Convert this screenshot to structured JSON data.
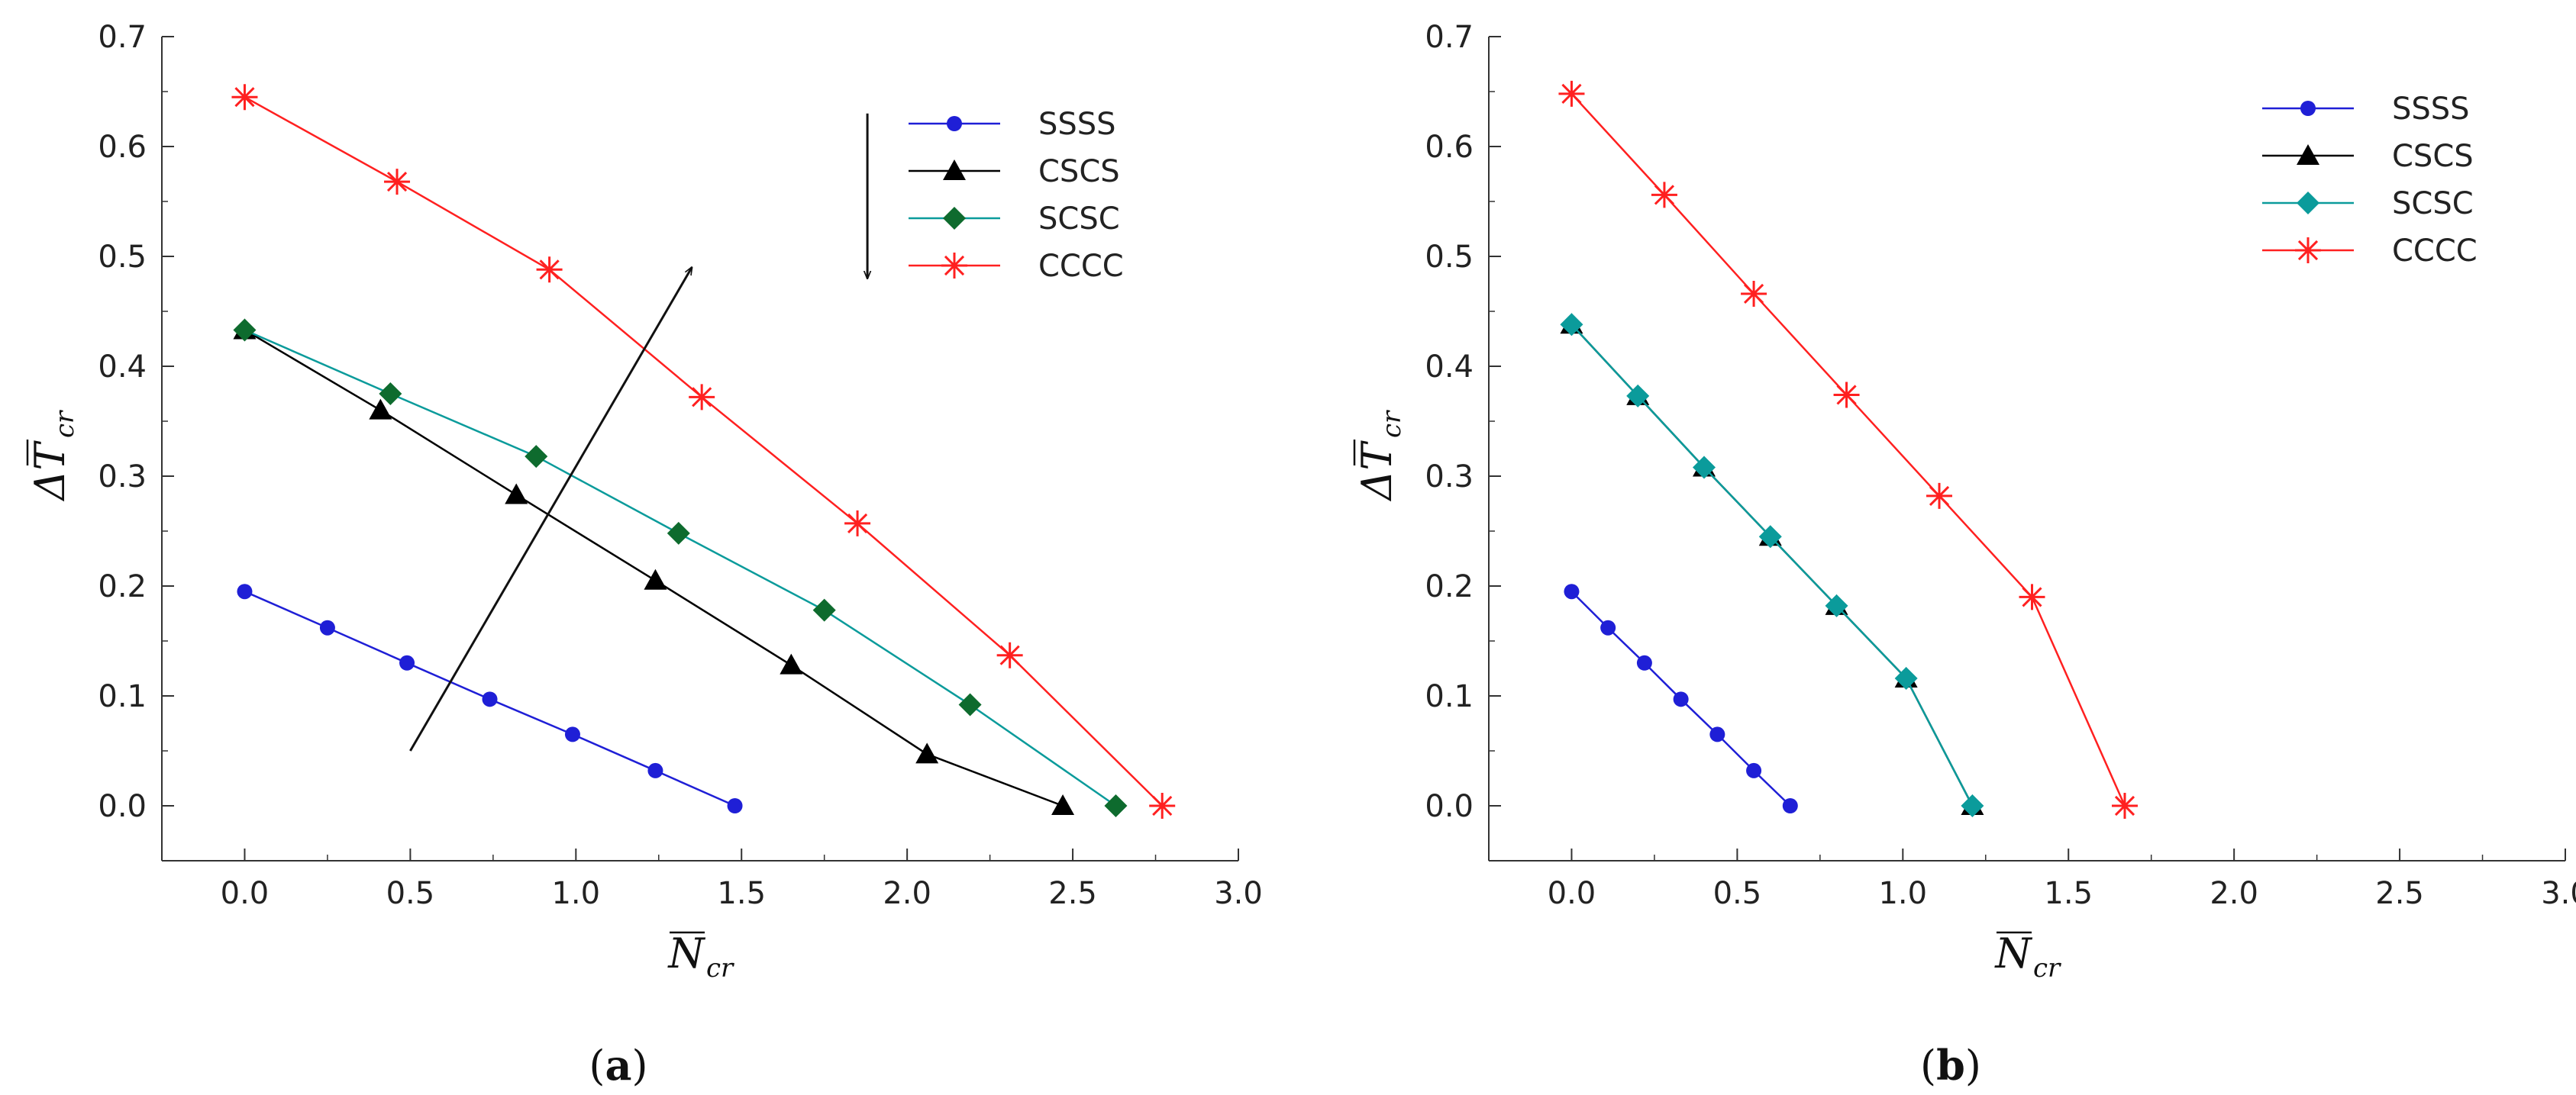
{
  "chart_data": [
    {
      "type": "line",
      "panel_label": {
        "open": "(",
        "letter": "a",
        "close": ")"
      },
      "xlabel": {
        "main": "N",
        "sub": "cr"
      },
      "ylabel": {
        "main": "ΔT",
        "sub": "cr"
      },
      "xlim": [
        -0.25,
        3.0
      ],
      "ylim": [
        -0.05,
        0.7
      ],
      "xticks": [
        "0.0",
        "0.5",
        "1.0",
        "1.5",
        "2.0",
        "2.5",
        "3.0"
      ],
      "yticks": [
        "0.0",
        "0.1",
        "0.2",
        "0.3",
        "0.4",
        "0.5",
        "0.6",
        "0.7"
      ],
      "legend_position": "top-right",
      "grid": false,
      "series": [
        {
          "name": "SSSS",
          "color": "#1f1fd6",
          "marker": "circle",
          "x": [
            0.0,
            0.25,
            0.49,
            0.74,
            0.99,
            1.24,
            1.48
          ],
          "y": [
            0.195,
            0.162,
            0.13,
            0.097,
            0.065,
            0.032,
            0.0
          ]
        },
        {
          "name": "CSCS",
          "color": "#000000",
          "marker": "triangle",
          "x": [
            0.0,
            0.41,
            0.82,
            1.24,
            1.65,
            2.06,
            2.47
          ],
          "y": [
            0.433,
            0.36,
            0.283,
            0.205,
            0.128,
            0.047,
            0.0
          ]
        },
        {
          "name": "SCSC",
          "color": "#0b9b9b",
          "marker": "diamond",
          "marker_color": "#0e6b2e",
          "x": [
            0.0,
            0.44,
            0.88,
            1.31,
            1.75,
            2.19,
            2.63
          ],
          "y": [
            0.433,
            0.375,
            0.318,
            0.248,
            0.178,
            0.092,
            0.0
          ]
        },
        {
          "name": "CCCC",
          "color": "#ff2020",
          "marker": "star",
          "x": [
            0.0,
            0.46,
            0.92,
            1.38,
            1.85,
            2.31,
            2.77
          ],
          "y": [
            0.645,
            0.568,
            0.488,
            0.372,
            0.257,
            0.137,
            0.0
          ]
        }
      ],
      "annotations": [
        {
          "type": "arrow",
          "from": [
            0.5,
            0.05
          ],
          "to": [
            1.35,
            0.49
          ]
        },
        {
          "type": "arrow",
          "from": [
            1.88,
            0.63
          ],
          "to": [
            1.88,
            0.48
          ]
        }
      ]
    },
    {
      "type": "line",
      "panel_label": {
        "open": "(",
        "letter": "b",
        "close": ")"
      },
      "xlabel": {
        "main": "N",
        "sub": "cr"
      },
      "ylabel": {
        "main": "ΔT",
        "sub": "cr"
      },
      "xlim": [
        -0.25,
        3.0
      ],
      "ylim": [
        -0.05,
        0.7
      ],
      "xticks": [
        "0.0",
        "0.5",
        "1.0",
        "1.5",
        "2.0",
        "2.5",
        "3.0"
      ],
      "yticks": [
        "0.0",
        "0.1",
        "0.2",
        "0.3",
        "0.4",
        "0.5",
        "0.6",
        "0.7"
      ],
      "legend_position": "top-right",
      "grid": false,
      "series": [
        {
          "name": "SSSS",
          "color": "#1f1fd6",
          "marker": "circle",
          "x": [
            0.0,
            0.11,
            0.22,
            0.33,
            0.44,
            0.55,
            0.66
          ],
          "y": [
            0.195,
            0.162,
            0.13,
            0.097,
            0.065,
            0.032,
            0.0
          ]
        },
        {
          "name": "CSCS",
          "color": "#000000",
          "marker": "triangle",
          "x": [
            0.0,
            0.2,
            0.4,
            0.6,
            0.8,
            1.01,
            1.21
          ],
          "y": [
            0.438,
            0.373,
            0.308,
            0.245,
            0.182,
            0.116,
            0.0
          ]
        },
        {
          "name": "SCSC",
          "color": "#0b9b9b",
          "marker": "diamond",
          "marker_color": "#0b9b9b",
          "x": [
            0.0,
            0.2,
            0.4,
            0.6,
            0.8,
            1.01,
            1.21
          ],
          "y": [
            0.438,
            0.373,
            0.308,
            0.245,
            0.182,
            0.116,
            0.0
          ]
        },
        {
          "name": "CCCC",
          "color": "#ff2020",
          "marker": "star",
          "x": [
            0.0,
            0.28,
            0.55,
            0.83,
            1.11,
            1.39,
            1.67
          ],
          "y": [
            0.648,
            0.556,
            0.466,
            0.374,
            0.282,
            0.19,
            0.0
          ]
        }
      ],
      "annotations": []
    }
  ]
}
